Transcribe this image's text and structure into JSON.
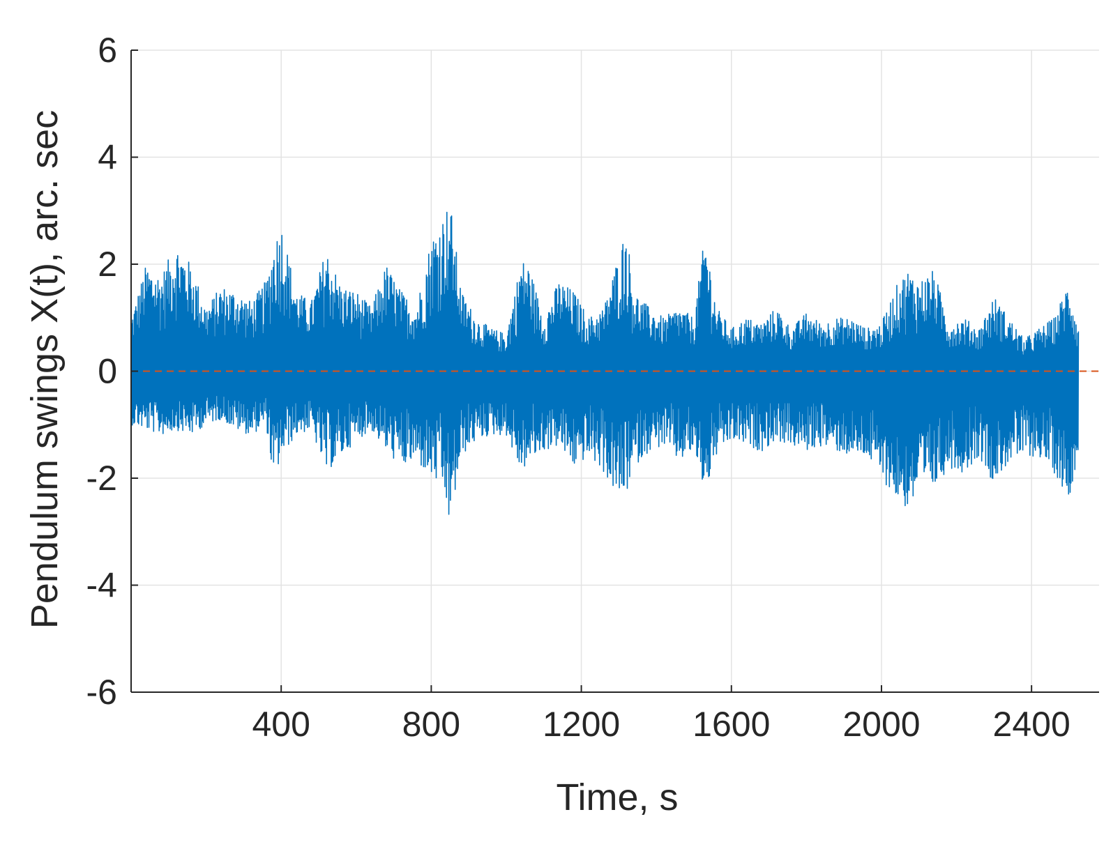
{
  "chart_data": {
    "type": "line",
    "title": "",
    "xlabel": "Time, s",
    "ylabel": "Pendulum swings X(t), arc. sec",
    "xlim": [
      0,
      2580
    ],
    "ylim": [
      -6,
      6
    ],
    "xticks": [
      400,
      800,
      1200,
      1600,
      2000,
      2400
    ],
    "yticks": [
      -6,
      -4,
      -2,
      0,
      2,
      4,
      6
    ],
    "xtick_labels": [
      "400",
      "800",
      "1200",
      "1600",
      "2000",
      "2400"
    ],
    "ytick_labels": [
      "-6",
      "-4",
      "-2",
      "0",
      "2",
      "4",
      "6"
    ],
    "grid": true,
    "legend": "none",
    "series": [
      {
        "color": "#0072BD",
        "style": "solid",
        "envelope_x": [
          0,
          40,
          80,
          120,
          160,
          200,
          240,
          280,
          320,
          360,
          380,
          400,
          440,
          480,
          520,
          560,
          600,
          640,
          680,
          720,
          760,
          800,
          830,
          850,
          880,
          920,
          960,
          1000,
          1040,
          1060,
          1100,
          1140,
          1180,
          1220,
          1260,
          1300,
          1320,
          1340,
          1380,
          1420,
          1460,
          1500,
          1530,
          1560,
          1600,
          1640,
          1680,
          1720,
          1760,
          1800,
          1840,
          1880,
          1920,
          1960,
          2000,
          2040,
          2070,
          2100,
          2140,
          2180,
          2220,
          2260,
          2300,
          2340,
          2380,
          2420,
          2460,
          2500,
          2525
        ],
        "envelope_upper": [
          1.0,
          2.0,
          1.8,
          2.4,
          2.0,
          1.2,
          1.6,
          1.5,
          1.3,
          1.7,
          2.4,
          2.8,
          1.5,
          1.3,
          2.3,
          1.6,
          1.5,
          1.2,
          2.0,
          1.5,
          1.2,
          2.5,
          2.9,
          3.2,
          1.5,
          1.0,
          0.8,
          0.7,
          2.1,
          2.0,
          1.0,
          1.7,
          1.5,
          1.0,
          1.2,
          2.2,
          2.7,
          1.5,
          1.2,
          1.0,
          1.2,
          1.0,
          2.6,
          1.2,
          0.8,
          1.0,
          0.9,
          1.2,
          0.8,
          1.1,
          0.9,
          1.0,
          1.0,
          0.8,
          0.9,
          1.6,
          1.9,
          1.7,
          1.9,
          0.9,
          1.0,
          0.8,
          1.4,
          1.0,
          0.6,
          0.8,
          1.0,
          1.7,
          0.8
        ],
        "envelope_lower": [
          -1.0,
          -1.1,
          -1.2,
          -1.1,
          -1.2,
          -1.0,
          -0.9,
          -1.1,
          -1.2,
          -1.0,
          -2.1,
          -1.6,
          -1.2,
          -1.1,
          -1.9,
          -1.6,
          -1.3,
          -1.1,
          -1.5,
          -1.8,
          -1.7,
          -2.0,
          -2.2,
          -2.9,
          -1.6,
          -1.3,
          -1.2,
          -1.2,
          -1.9,
          -1.7,
          -1.5,
          -1.4,
          -1.8,
          -1.6,
          -1.9,
          -2.4,
          -2.3,
          -1.8,
          -1.5,
          -1.4,
          -1.7,
          -1.5,
          -2.3,
          -1.6,
          -1.3,
          -1.4,
          -1.5,
          -1.3,
          -1.4,
          -1.5,
          -1.4,
          -1.5,
          -1.6,
          -1.6,
          -2.0,
          -2.4,
          -2.6,
          -2.3,
          -2.2,
          -1.8,
          -1.9,
          -1.6,
          -2.1,
          -1.7,
          -1.6,
          -1.6,
          -1.9,
          -2.4,
          -1.5
        ]
      },
      {
        "color": "#D95319",
        "style": "dashed",
        "x": [
          0,
          2580
        ],
        "y": [
          0,
          0
        ]
      }
    ]
  }
}
